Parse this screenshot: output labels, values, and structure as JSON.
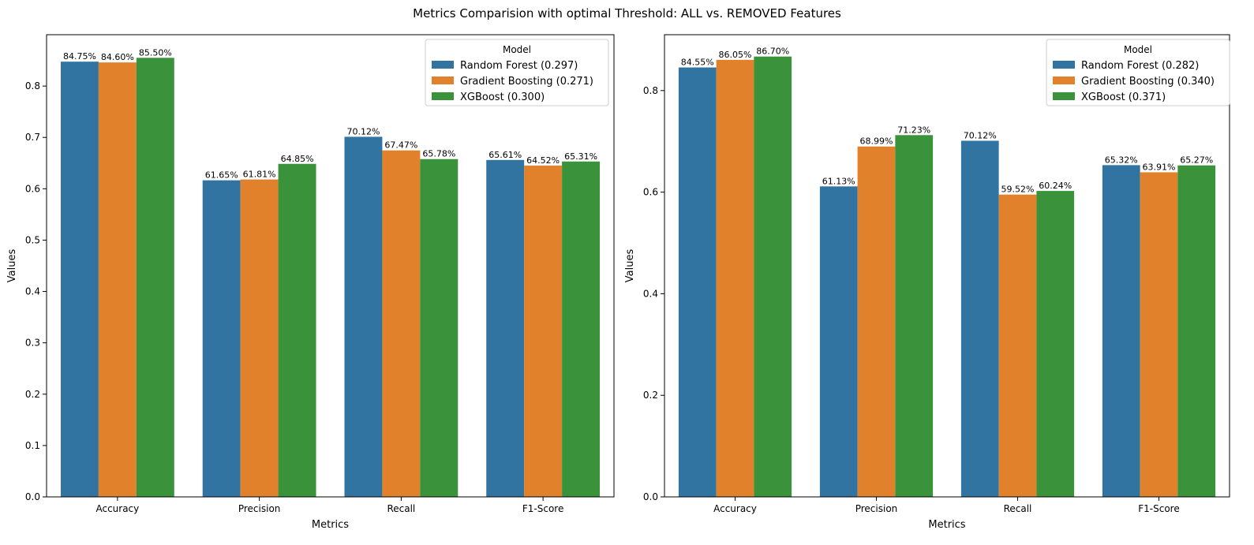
{
  "figure": {
    "title": "Metrics Comparision with optimal Threshold: ALL vs. REMOVED Features"
  },
  "chart_data": [
    {
      "type": "bar",
      "categories": [
        "Accuracy",
        "Precision",
        "Recall",
        "F1-Score"
      ],
      "xlabel": "Metrics",
      "ylabel": "Values",
      "ylim": [
        0,
        0.9
      ],
      "yticks": [
        "0.0",
        "0.1",
        "0.2",
        "0.3",
        "0.4",
        "0.5",
        "0.6",
        "0.7",
        "0.8"
      ],
      "legend": {
        "title": "Model",
        "placement": "top-right"
      },
      "series": [
        {
          "name": "Random Forest (0.297)",
          "color": "#3274a1",
          "values": [
            0.8475,
            0.6165,
            0.7012,
            0.6561
          ],
          "labels": [
            "84.75%",
            "61.65%",
            "70.12%",
            "65.61%"
          ]
        },
        {
          "name": "Gradient Boosting (0.271)",
          "color": "#e1812c",
          "values": [
            0.846,
            0.6181,
            0.6747,
            0.6452
          ],
          "labels": [
            "84.60%",
            "61.81%",
            "67.47%",
            "64.52%"
          ]
        },
        {
          "name": "XGBoost (0.300)",
          "color": "#3a923a",
          "values": [
            0.855,
            0.6485,
            0.6578,
            0.6531
          ],
          "labels": [
            "85.50%",
            "64.85%",
            "65.78%",
            "65.31%"
          ]
        }
      ]
    },
    {
      "type": "bar",
      "categories": [
        "Accuracy",
        "Precision",
        "Recall",
        "F1-Score"
      ],
      "xlabel": "Metrics",
      "ylabel": "Values",
      "ylim": [
        0,
        0.91
      ],
      "yticks": [
        "0.0",
        "0.2",
        "0.4",
        "0.6",
        "0.8"
      ],
      "legend": {
        "title": "Model",
        "placement": "top-right"
      },
      "series": [
        {
          "name": "Random Forest (0.282)",
          "color": "#3274a1",
          "values": [
            0.8455,
            0.6113,
            0.7012,
            0.6532
          ],
          "labels": [
            "84.55%",
            "61.13%",
            "70.12%",
            "65.32%"
          ]
        },
        {
          "name": "Gradient Boosting (0.340)",
          "color": "#e1812c",
          "values": [
            0.8605,
            0.6899,
            0.5952,
            0.6391
          ],
          "labels": [
            "86.05%",
            "68.99%",
            "59.52%",
            "63.91%"
          ]
        },
        {
          "name": "XGBoost (0.371)",
          "color": "#3a923a",
          "values": [
            0.867,
            0.7123,
            0.6024,
            0.6527
          ],
          "labels": [
            "86.70%",
            "71.23%",
            "60.24%",
            "65.27%"
          ]
        }
      ]
    }
  ]
}
